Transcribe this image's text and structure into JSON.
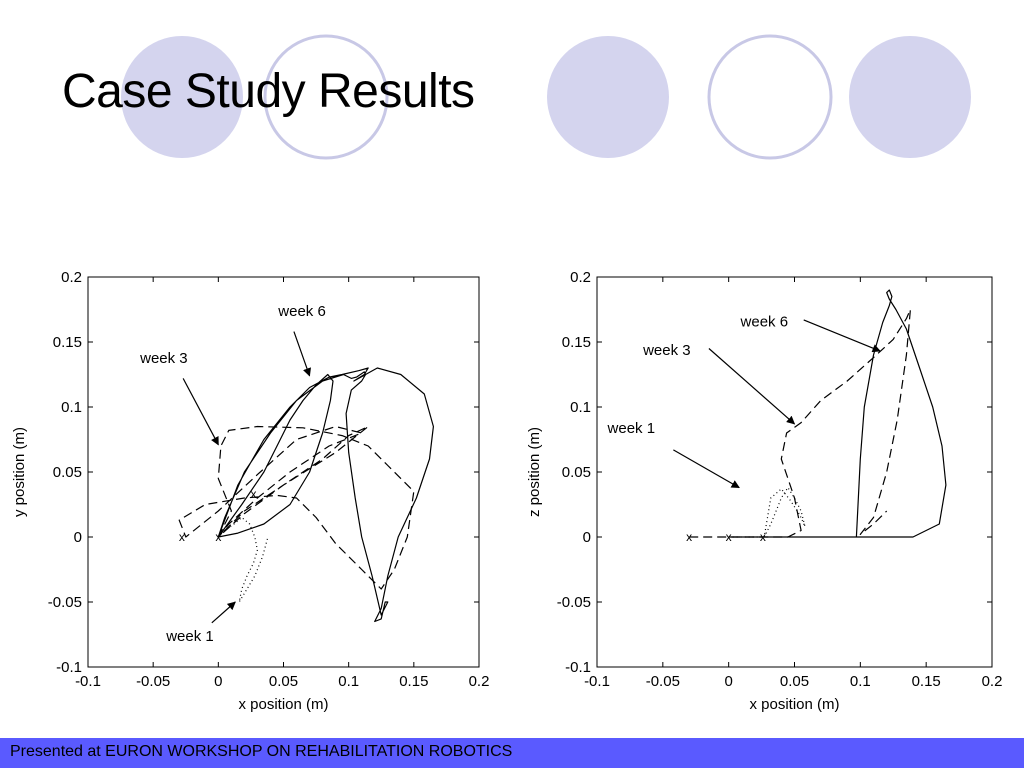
{
  "slide": {
    "title": "Case Study Results",
    "footer": "Presented at EURON WORKSHOP ON REHABILITATION ROBOTICS",
    "colors": {
      "circle_fill": "#d4d4ee",
      "circle_stroke": "#c8c8e6",
      "footer_bg": "#5a5aff"
    }
  },
  "chart_data": [
    {
      "type": "line",
      "xlabel": "x position (m)",
      "ylabel": "y position (m)",
      "xlim": [
        -0.1,
        0.2
      ],
      "ylim": [
        -0.1,
        0.2
      ],
      "xticks": [
        "-0.1",
        "-0.05",
        "0",
        "0.05",
        "0.1",
        "0.15",
        "0.2"
      ],
      "yticks": [
        "-0.1",
        "-0.05",
        "0",
        "0.05",
        "0.1",
        "0.15",
        "0.2"
      ],
      "grid": false,
      "series": [
        {
          "name": "week 1",
          "style": "dotted",
          "x": [
            0.0,
            0.005,
            0.012,
            0.018,
            0.024,
            0.028,
            0.03,
            0.027,
            0.022,
            0.018,
            0.016,
            0.022,
            0.028,
            0.034,
            0.038
          ],
          "y": [
            0.0,
            0.005,
            0.01,
            0.015,
            0.01,
            0.0,
            -0.01,
            -0.02,
            -0.03,
            -0.04,
            -0.05,
            -0.04,
            -0.03,
            -0.015,
            0.0
          ]
        },
        {
          "name": "week 3",
          "style": "dashed",
          "x": [
            0.0,
            0.01,
            0.0,
            0.002,
            0.008,
            0.03,
            0.065,
            0.095,
            0.115,
            0.13,
            0.15,
            0.145,
            0.135,
            0.125,
            0.11,
            0.09,
            0.075,
            0.06,
            0.045,
            0.02,
            -0.01,
            -0.03,
            -0.025,
            0.0,
            0.03,
            0.06,
            0.09,
            0.11,
            0.085,
            0.055,
            0.03,
            0.008,
            0.0,
            0.02,
            0.05,
            0.08,
            0.1,
            0.115,
            0.09,
            0.05,
            0.02,
            0.0
          ],
          "y": [
            0.0,
            0.02,
            0.045,
            0.07,
            0.082,
            0.085,
            0.084,
            0.078,
            0.07,
            0.055,
            0.035,
            0.0,
            -0.025,
            -0.04,
            -0.025,
            -0.005,
            0.015,
            0.03,
            0.032,
            0.03,
            0.025,
            0.013,
            0.0,
            0.02,
            0.048,
            0.075,
            0.085,
            0.08,
            0.07,
            0.05,
            0.03,
            0.01,
            0.0,
            0.018,
            0.04,
            0.06,
            0.078,
            0.085,
            0.065,
            0.04,
            0.02,
            0.0
          ]
        },
        {
          "name": "week 6",
          "style": "solid",
          "x": [
            0.0,
            0.015,
            0.035,
            0.055,
            0.07,
            0.085,
            0.095,
            0.108,
            0.115,
            0.112,
            0.104,
            0.122,
            0.14,
            0.158,
            0.165,
            0.162,
            0.152,
            0.138,
            0.13,
            0.125,
            0.12,
            0.125,
            0.128,
            0.13,
            0.125,
            0.118,
            0.11,
            0.105,
            0.1,
            0.098,
            0.102,
            0.11,
            0.113,
            0.112,
            0.106,
            0.102,
            0.096,
            0.08,
            0.06,
            0.04,
            0.02,
            0.005,
            0.0,
            0.018,
            0.035,
            0.045,
            0.055,
            0.065,
            0.075,
            0.084,
            0.088,
            0.086,
            0.08,
            0.07,
            0.055,
            0.035,
            0.015,
            0.0
          ],
          "y": [
            0.0,
            0.04,
            0.075,
            0.1,
            0.115,
            0.123,
            0.125,
            0.128,
            0.13,
            0.125,
            0.12,
            0.13,
            0.125,
            0.11,
            0.085,
            0.06,
            0.03,
            0.0,
            -0.03,
            -0.055,
            -0.065,
            -0.063,
            -0.05,
            -0.05,
            -0.06,
            -0.03,
            0.0,
            0.03,
            0.065,
            0.095,
            0.113,
            0.12,
            0.125,
            0.127,
            0.123,
            0.122,
            0.125,
            0.12,
            0.105,
            0.08,
            0.05,
            0.015,
            0.0,
            0.025,
            0.05,
            0.07,
            0.09,
            0.105,
            0.117,
            0.125,
            0.12,
            0.105,
            0.08,
            0.05,
            0.025,
            0.01,
            0.003,
            0.0
          ]
        }
      ],
      "markers": {
        "label": "x",
        "points": [
          [
            0.0,
            0.0
          ],
          [
            -0.028,
            0.0
          ],
          [
            0.027,
            0.033
          ]
        ]
      },
      "annotations": [
        {
          "text": "week 6",
          "text_xy": [
            0.046,
            0.17
          ],
          "arrow_from": [
            0.058,
            0.158
          ],
          "arrow_to": [
            0.07,
            0.124
          ]
        },
        {
          "text": "week 3",
          "text_xy": [
            -0.06,
            0.134
          ],
          "arrow_from": [
            -0.027,
            0.122
          ],
          "arrow_to": [
            0.0,
            0.071
          ]
        },
        {
          "text": "week 1",
          "text_xy": [
            -0.04,
            -0.08
          ],
          "arrow_from": [
            -0.005,
            -0.066
          ],
          "arrow_to": [
            0.013,
            -0.05
          ]
        }
      ]
    },
    {
      "type": "line",
      "xlabel": "x position (m)",
      "ylabel": "z position (m)",
      "xlim": [
        -0.1,
        0.2
      ],
      "ylim": [
        -0.1,
        0.2
      ],
      "xticks": [
        "-0.1",
        "-0.05",
        "0",
        "0.05",
        "0.1",
        "0.15",
        "0.2"
      ],
      "yticks": [
        "-0.1",
        "-0.05",
        "0",
        "0.05",
        "0.1",
        "0.15",
        "0.2"
      ],
      "grid": false,
      "series": [
        {
          "name": "week 1",
          "style": "dotted",
          "x": [
            0.027,
            0.032,
            0.036,
            0.04,
            0.045,
            0.05,
            0.055,
            0.058,
            0.054,
            0.047,
            0.04,
            0.032,
            0.027
          ],
          "y": [
            0.0,
            0.01,
            0.02,
            0.03,
            0.038,
            0.03,
            0.02,
            0.008,
            0.017,
            0.028,
            0.037,
            0.03,
            0.0
          ],
          "base_segment": {
            "x": [
              0.0,
              0.027
            ],
            "y": [
              0.0,
              0.0
            ]
          }
        },
        {
          "name": "week 3",
          "style": "dashed",
          "x": [
            -0.03,
            -0.02,
            -0.01,
            0.0,
            0.02,
            0.045,
            0.055,
            0.05,
            0.04,
            0.044,
            0.055,
            0.07,
            0.09,
            0.11,
            0.125,
            0.135,
            0.138,
            0.135,
            0.128,
            0.12,
            0.11,
            0.1,
            0.11,
            0.12
          ],
          "y": [
            0.0,
            0.0,
            0.0,
            0.0,
            0.0,
            0.0,
            0.005,
            0.03,
            0.06,
            0.08,
            0.088,
            0.105,
            0.12,
            0.138,
            0.152,
            0.168,
            0.175,
            0.14,
            0.09,
            0.05,
            0.015,
            0.002,
            0.01,
            0.02
          ]
        },
        {
          "name": "week 6",
          "style": "solid",
          "x": [
            0.0,
            0.03,
            0.06,
            0.09,
            0.14,
            0.16,
            0.165,
            0.162,
            0.155,
            0.145,
            0.135,
            0.127,
            0.122,
            0.12,
            0.122,
            0.124,
            0.122,
            0.117,
            0.11,
            0.103,
            0.1,
            0.098,
            0.097
          ],
          "y": [
            0.0,
            0.0,
            0.0,
            0.0,
            0.0,
            0.01,
            0.04,
            0.07,
            0.1,
            0.13,
            0.16,
            0.175,
            0.183,
            0.188,
            0.19,
            0.185,
            0.178,
            0.165,
            0.14,
            0.1,
            0.06,
            0.02,
            0.0
          ]
        }
      ],
      "markers": {
        "label": "x",
        "points": [
          [
            -0.03,
            0.0
          ],
          [
            0.0,
            0.0
          ],
          [
            0.026,
            0.0
          ]
        ]
      },
      "annotations": [
        {
          "text": "week 6",
          "text_xy": [
            0.009,
            0.162
          ],
          "arrow_from": [
            0.057,
            0.167
          ],
          "arrow_to": [
            0.115,
            0.143
          ]
        },
        {
          "text": "week 3",
          "text_xy": [
            -0.065,
            0.14
          ],
          "arrow_from": [
            -0.015,
            0.145
          ],
          "arrow_to": [
            0.05,
            0.087
          ]
        },
        {
          "text": "week 1",
          "text_xy": [
            -0.092,
            0.08
          ],
          "arrow_from": [
            -0.042,
            0.067
          ],
          "arrow_to": [
            0.008,
            0.038
          ]
        }
      ]
    }
  ]
}
